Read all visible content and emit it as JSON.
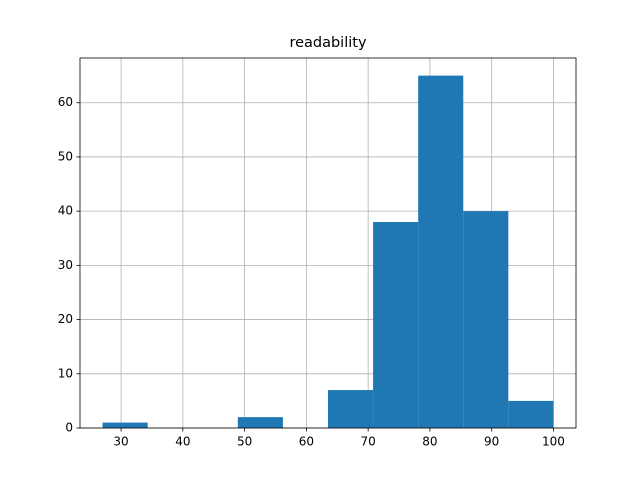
{
  "chart_data": {
    "type": "histogram",
    "title": "readability",
    "bins": [
      27,
      34.3,
      41.6,
      48.9,
      56.2,
      63.5,
      70.8,
      78.1,
      85.4,
      92.7,
      100
    ],
    "values": [
      1,
      0,
      0,
      2,
      0,
      7,
      38,
      65,
      40,
      5
    ],
    "color": "#1f77b4",
    "xlim": [
      23.35,
      103.65
    ],
    "xticks": [
      30,
      40,
      50,
      60,
      70,
      80,
      90,
      100
    ],
    "ylim": [
      0,
      68.25
    ],
    "yticks": [
      0,
      10,
      20,
      30,
      40,
      50,
      60
    ],
    "grid": true
  }
}
